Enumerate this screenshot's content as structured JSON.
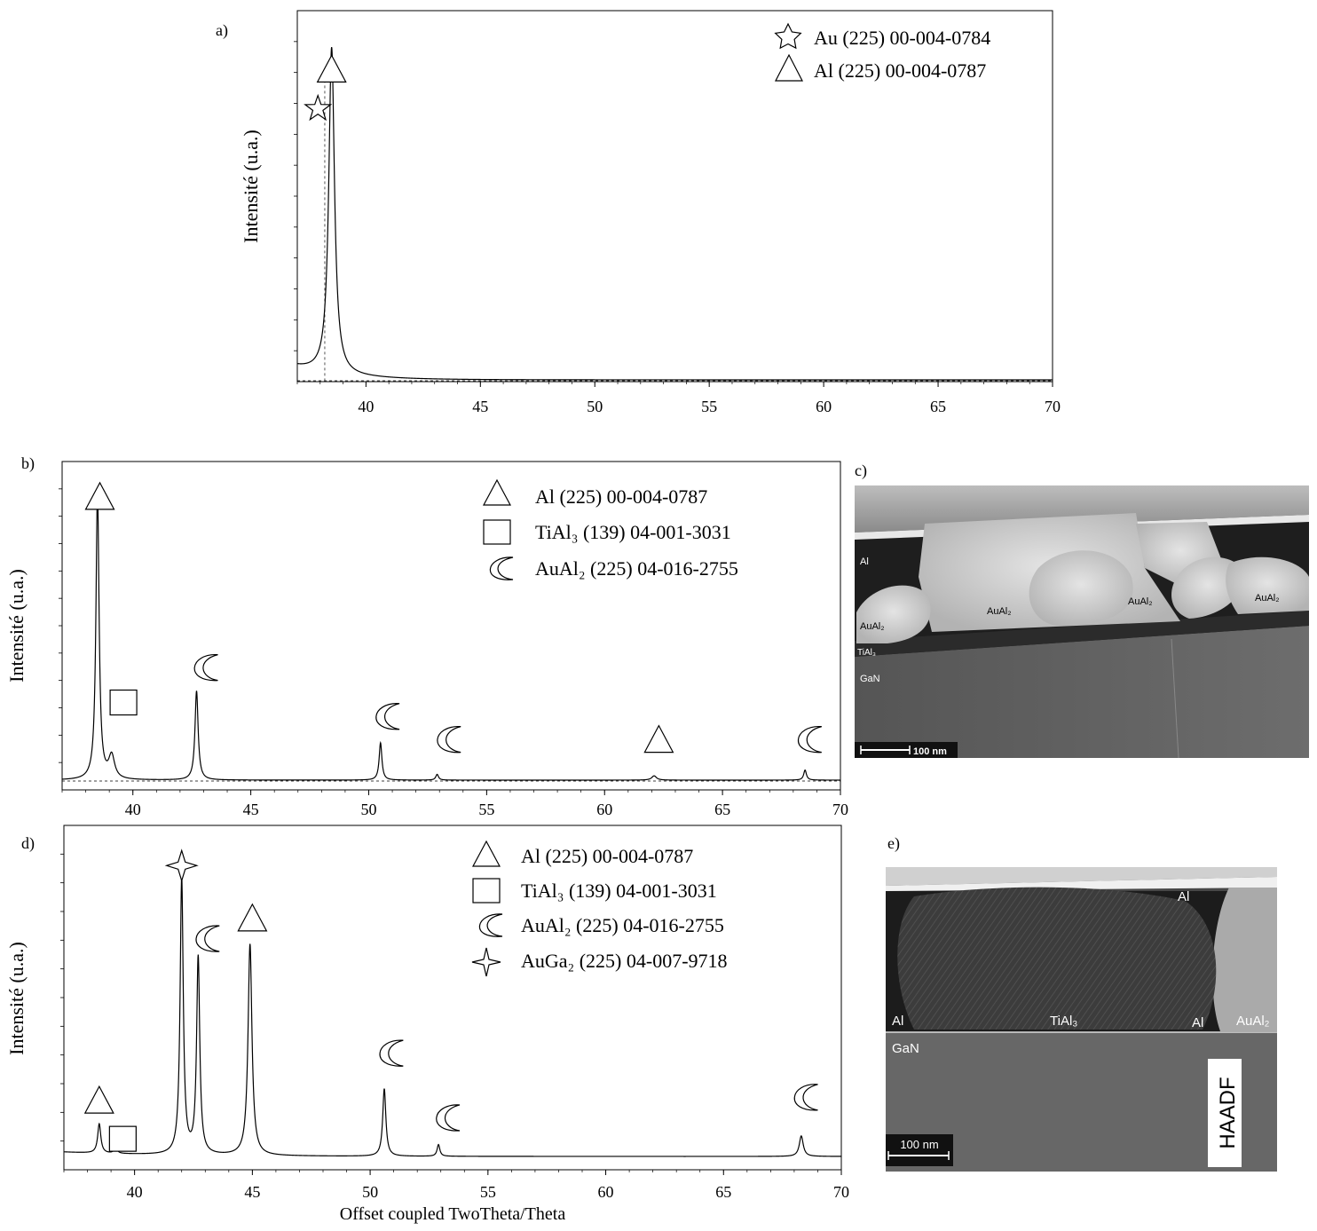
{
  "chart_data": [
    {
      "id": "a",
      "panel_label": "a)",
      "type": "line",
      "ylabel": "Intensité (u.a.)",
      "xlim": [
        37,
        70
      ],
      "xticks": [
        40,
        45,
        50,
        55,
        60,
        65,
        70
      ],
      "reference_line_x": 38.2,
      "peaks": [
        {
          "x": 38.5,
          "height": 1.0,
          "width": 0.15,
          "phase": "Al"
        }
      ],
      "markers": [
        {
          "symbol": "star",
          "x": 37.9,
          "level": 0.83
        },
        {
          "symbol": "triangle",
          "x": 38.5,
          "level": 0.95
        }
      ],
      "legend": [
        {
          "symbol": "star",
          "label": "Au (225) 00-004-0784"
        },
        {
          "symbol": "triangle",
          "label": "Al (225) 00-004-0787"
        }
      ]
    },
    {
      "id": "b",
      "panel_label": "b)",
      "type": "line",
      "ylabel": "Intensité (u.a.)",
      "xlim": [
        37,
        70
      ],
      "xticks": [
        40,
        45,
        50,
        55,
        60,
        65,
        70
      ],
      "peaks": [
        {
          "x": 38.5,
          "height": 1.0,
          "width": 0.08
        },
        {
          "x": 39.1,
          "height": 0.08,
          "width": 0.15
        },
        {
          "x": 42.7,
          "height": 0.31,
          "width": 0.08
        },
        {
          "x": 50.5,
          "height": 0.13,
          "width": 0.07
        },
        {
          "x": 52.9,
          "height": 0.02,
          "width": 0.07
        },
        {
          "x": 62.1,
          "height": 0.015,
          "width": 0.12
        },
        {
          "x": 68.5,
          "height": 0.035,
          "width": 0.07
        }
      ],
      "markers": [
        {
          "symbol": "triangle",
          "x": 38.6,
          "level": 0.985
        },
        {
          "symbol": "square",
          "x": 39.6,
          "level": 0.27
        },
        {
          "symbol": "crescent",
          "x": 43.0,
          "level": 0.39
        },
        {
          "symbol": "crescent",
          "x": 50.7,
          "level": 0.22
        },
        {
          "symbol": "crescent",
          "x": 53.3,
          "level": 0.14
        },
        {
          "symbol": "triangle",
          "x": 62.3,
          "level": 0.14
        },
        {
          "symbol": "crescent",
          "x": 68.6,
          "level": 0.14
        }
      ],
      "legend": [
        {
          "symbol": "triangle",
          "label": "Al (225) 00-004-0787"
        },
        {
          "symbol": "square",
          "label": "TiAl₃ (139) 04-001-3031"
        },
        {
          "symbol": "crescent",
          "label": "AuAl₂ (225) 04-016-2755"
        }
      ]
    },
    {
      "id": "d",
      "panel_label": "d)",
      "type": "line",
      "ylabel": "Intensité (u.a.)",
      "xlabel": "Offset coupled TwoTheta/Theta",
      "xlim": [
        37,
        70
      ],
      "xticks": [
        40,
        45,
        50,
        55,
        60,
        65,
        70
      ],
      "peaks": [
        {
          "x": 38.5,
          "height": 0.1,
          "width": 0.08
        },
        {
          "x": 39.2,
          "height": 0.02,
          "width": 0.08
        },
        {
          "x": 42.0,
          "height": 0.94,
          "width": 0.08
        },
        {
          "x": 42.7,
          "height": 0.67,
          "width": 0.08
        },
        {
          "x": 44.9,
          "height": 0.72,
          "width": 0.1
        },
        {
          "x": 50.6,
          "height": 0.23,
          "width": 0.08
        },
        {
          "x": 52.9,
          "height": 0.04,
          "width": 0.07
        },
        {
          "x": 68.3,
          "height": 0.07,
          "width": 0.1
        }
      ],
      "markers": [
        {
          "symbol": "triangle",
          "x": 38.5,
          "level": 0.19
        },
        {
          "symbol": "square",
          "x": 39.5,
          "level": 0.06
        },
        {
          "symbol": "star4",
          "x": 42.0,
          "level": 0.99
        },
        {
          "symbol": "crescent",
          "x": 43.0,
          "level": 0.74
        },
        {
          "symbol": "triangle",
          "x": 45.0,
          "level": 0.81
        },
        {
          "symbol": "crescent",
          "x": 50.8,
          "level": 0.35
        },
        {
          "symbol": "crescent",
          "x": 53.2,
          "level": 0.13
        },
        {
          "symbol": "crescent",
          "x": 68.4,
          "level": 0.2
        }
      ],
      "legend": [
        {
          "symbol": "triangle",
          "label": "Al (225) 00-004-0787"
        },
        {
          "symbol": "square",
          "label": "TiAl₃ (139) 04-001-3031"
        },
        {
          "symbol": "crescent",
          "label": "AuAl₂ (225) 04-016-2755"
        },
        {
          "symbol": "star4",
          "label": "AuGa₂ (225) 04-007-9718"
        }
      ]
    }
  ],
  "micrographs": [
    {
      "id": "c",
      "panel_label": "c)",
      "labels": [
        {
          "key": "al",
          "text": "Al"
        },
        {
          "key": "aual2_left",
          "text": "AuAl₂"
        },
        {
          "key": "tial3",
          "text": "TiAl₃"
        },
        {
          "key": "gan",
          "text": "GaN"
        },
        {
          "key": "aual2_1",
          "text": "AuAl₂"
        },
        {
          "key": "aual2_2",
          "text": "AuAl₂"
        },
        {
          "key": "aual2_3",
          "text": "AuAl₂"
        }
      ],
      "scalebar": "100 nm"
    },
    {
      "id": "e",
      "panel_label": "e)",
      "labels": [
        {
          "key": "al_top",
          "text": "Al"
        },
        {
          "key": "al_left",
          "text": "Al"
        },
        {
          "key": "tial3",
          "text": "TiAl₃"
        },
        {
          "key": "al_mid",
          "text": "Al"
        },
        {
          "key": "aual2",
          "text": "AuAl₂"
        },
        {
          "key": "gan",
          "text": "GaN"
        }
      ],
      "scalebar": "100 nm",
      "detector_label": "HAADF"
    }
  ]
}
